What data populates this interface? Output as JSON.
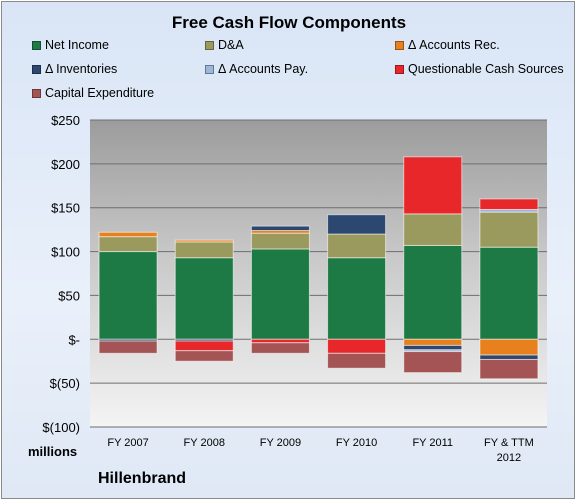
{
  "chart_data": {
    "type": "bar",
    "stacked": true,
    "title": "Free Cash Flow Components",
    "units_label": "millions",
    "company": "Hillenbrand",
    "categories": [
      "FY 2007",
      "FY 2008",
      "FY 2009",
      "FY 2010",
      "FY 2011",
      "FY & TTM 2012"
    ],
    "y_tick_labels": [
      "$250",
      "$200",
      "$150",
      "$100",
      "$50",
      "$-",
      "$(50)",
      "$(100)"
    ],
    "ylim": [
      -100,
      250
    ],
    "grid": true,
    "legend_position": "top",
    "series": [
      {
        "name": "Net Income",
        "color": "#1e7a45",
        "values": [
          100,
          93,
          103,
          93,
          107,
          105
        ]
      },
      {
        "name": "D&A",
        "color": "#9b9a5e",
        "values": [
          17,
          18,
          18,
          27,
          36,
          40
        ]
      },
      {
        "name": "Δ Accounts Rec.",
        "color": "#e8801e",
        "values": [
          5,
          2,
          3,
          0,
          -7,
          -18
        ]
      },
      {
        "name": "Δ Inventories",
        "color": "#2c4770",
        "values": [
          -2,
          -2,
          5,
          22,
          -5,
          -5
        ]
      },
      {
        "name": "Δ Accounts Pay.",
        "color": "#9db7d8",
        "values": [
          0,
          0,
          0,
          0,
          -2,
          3
        ]
      },
      {
        "name": "Questionable Cash Sources",
        "color": "#e8272b",
        "values": [
          0,
          -11,
          -4,
          -16,
          65,
          12
        ]
      },
      {
        "name": "Capital Expenditure",
        "color": "#a45454",
        "values": [
          -14,
          -12,
          -12,
          -17,
          -24,
          -22
        ]
      }
    ]
  }
}
